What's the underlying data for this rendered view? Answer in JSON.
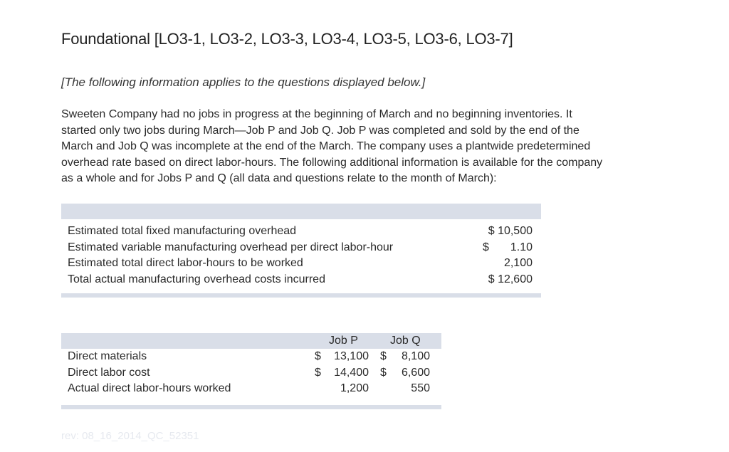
{
  "header": {
    "title": "Foundational [LO3-1, LO3-2, LO3-3, LO3-4, LO3-5, LO3-6, LO3-7]",
    "note": "[The following information applies to the questions displayed below.]"
  },
  "intro": {
    "lines": [
      "Sweeten Company had no jobs in progress at the beginning of March and no beginning inventories. It",
      "started only two jobs during March—Job P and Job Q. Job P was completed and sold by the end of the",
      "March and Job Q was incomplete at the end of the March. The company uses a plantwide predetermined",
      "overhead rate based on direct labor-hours. The following additional information is available for the company",
      "as a whole and for Jobs P and Q (all data and questions relate to the month of March):"
    ]
  },
  "overhead_table": {
    "rows": [
      {
        "label": "Estimated total fixed manufacturing overhead",
        "value": "$ 10,500",
        "dollar": ""
      },
      {
        "label": "Estimated variable manufacturing overhead per direct labor-hour",
        "value": "1.10",
        "dollar": "$"
      },
      {
        "label": "Estimated total direct labor-hours to be worked",
        "value": "2,100",
        "dollar": ""
      },
      {
        "label": "Total actual manufacturing overhead costs incurred",
        "value": "$ 12,600",
        "dollar": ""
      }
    ]
  },
  "jobs_table": {
    "headers": {
      "job_p": "Job P",
      "job_q": "Job Q"
    },
    "rows": [
      {
        "label": "Direct materials",
        "p_dollar": "$",
        "p_value": "13,100",
        "q_dollar": "$",
        "q_value": "8,100"
      },
      {
        "label": "Direct labor cost",
        "p_dollar": "$",
        "p_value": "14,400",
        "q_dollar": "$",
        "q_value": "6,600"
      },
      {
        "label": "Actual direct labor-hours worked",
        "p_dollar": "",
        "p_value": "1,200",
        "q_dollar": "",
        "q_value": "550"
      }
    ]
  },
  "footer": {
    "watermark": "rev: 08_16_2014_QC_52351"
  }
}
